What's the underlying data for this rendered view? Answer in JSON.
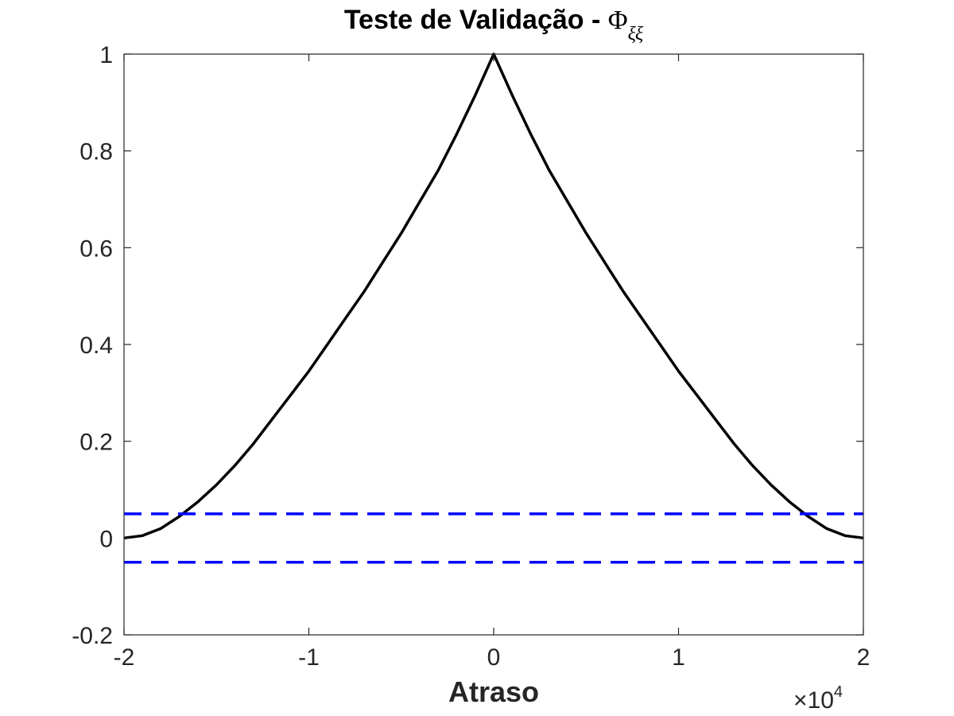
{
  "chart_data": {
    "type": "line",
    "title": "Teste de Validação - ",
    "title_symbol": "Φ",
    "title_subscript": "ξξ",
    "xlabel": "Atraso",
    "ylabel": "",
    "x_multiplier": "×10",
    "x_multiplier_exponent": "4",
    "xlim": [
      -20000,
      20000
    ],
    "ylim": [
      -0.2,
      1
    ],
    "x_ticks": [
      -20000,
      -10000,
      0,
      10000,
      20000
    ],
    "x_tick_labels": [
      "-2",
      "-1",
      "0",
      "1",
      "2"
    ],
    "y_ticks": [
      -0.2,
      0,
      0.2,
      0.4,
      0.6,
      0.8,
      1
    ],
    "y_tick_labels": [
      "-0.2",
      "0",
      "0.2",
      "0.4",
      "0.6",
      "0.8",
      "1"
    ],
    "grid": false,
    "box": true,
    "series": [
      {
        "color": "#000000",
        "style": "solid",
        "x": [
          -20000,
          -19000,
          -18000,
          -17000,
          -16000,
          -15000,
          -14000,
          -13000,
          -12000,
          -11000,
          -10000,
          -9000,
          -8000,
          -7000,
          -6000,
          -5000,
          -4000,
          -3000,
          -2000,
          -1000,
          0,
          1000,
          2000,
          3000,
          4000,
          5000,
          6000,
          7000,
          8000,
          9000,
          10000,
          11000,
          12000,
          13000,
          14000,
          15000,
          16000,
          17000,
          18000,
          19000,
          20000
        ],
        "y": [
          0.0,
          0.005,
          0.02,
          0.045,
          0.075,
          0.11,
          0.15,
          0.195,
          0.245,
          0.295,
          0.345,
          0.4,
          0.455,
          0.51,
          0.57,
          0.63,
          0.695,
          0.76,
          0.835,
          0.915,
          1.0,
          0.915,
          0.835,
          0.76,
          0.695,
          0.63,
          0.57,
          0.51,
          0.455,
          0.4,
          0.345,
          0.295,
          0.245,
          0.195,
          0.15,
          0.11,
          0.075,
          0.045,
          0.02,
          0.005,
          0.0
        ]
      },
      {
        "color": "#0000ff",
        "style": "dashed",
        "x": [
          -20000,
          20000
        ],
        "y": [
          0.05,
          0.05
        ]
      },
      {
        "color": "#0000ff",
        "style": "dashed",
        "x": [
          -20000,
          20000
        ],
        "y": [
          -0.05,
          -0.05
        ]
      }
    ]
  }
}
